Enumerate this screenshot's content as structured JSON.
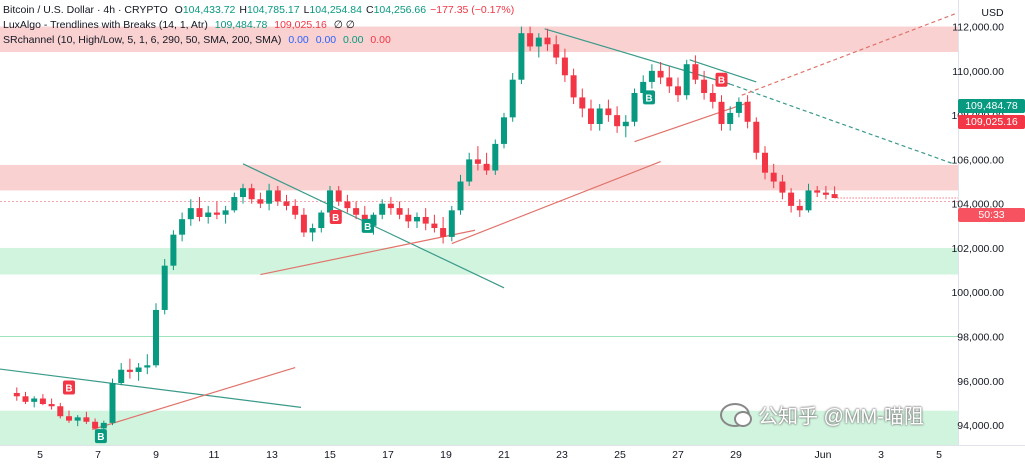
{
  "legend": {
    "symbol": "Bitcoin / U.S. Dollar · 4h · CRYPTO",
    "open_label": "O",
    "open": "104,433.72",
    "high_label": "H",
    "high": "104,785.17",
    "low_label": "L",
    "low": "104,254.84",
    "close_label": "C",
    "close": "104,256.66",
    "change": "−177.35 (−0.17%)",
    "indicator1_name": "LuxAlgo - Trendlines with Breaks (14, 1, Atr)",
    "indicator1_v1": "109,484.78",
    "indicator1_v2": "109,025.16",
    "indicator1_v3": "∅ ∅",
    "indicator2_name": "SRchannel (10, High/Low, 5, 1, 6, 290, 50, SMA, 200, SMA)",
    "indicator2_v1": "0.00",
    "indicator2_v2": "0.00",
    "indicator2_v3": "0.00",
    "indicator2_v4": "0.00"
  },
  "currency": "USD",
  "price_tags": [
    {
      "text": "109,484.78",
      "color": "#089981"
    },
    {
      "text": "109,025.16",
      "color": "#f23645"
    },
    {
      "text": "50:33",
      "color": "#f7525f"
    }
  ],
  "watermark": "公知乎 @MM-喵阻",
  "colors": {
    "up": "#089981",
    "down": "#f23645",
    "resistance_zone": "#f8c9c9",
    "support_zone": "#c9f2d8",
    "trend_down": "#3a9a8a",
    "trend_up": "#e0736b",
    "buy_label": "#089981",
    "sell_label": "#f23645"
  },
  "chart_data": {
    "type": "candlestick",
    "title": "Bitcoin / U.S. Dollar · 4h · CRYPTO",
    "x_ticks": [
      "5",
      "7",
      "9",
      "11",
      "13",
      "15",
      "17",
      "19",
      "21",
      "23",
      "25",
      "27",
      "29",
      "Jun",
      "3",
      "5"
    ],
    "y_ticks": [
      "112,000.00",
      "110,000.00",
      "108,000.00",
      "106,000.00",
      "104,000.00",
      "102,000.00",
      "100,000.00",
      "98,000.00",
      "96,000.00",
      "94,000.00"
    ],
    "ylim": [
      93100,
      113200
    ],
    "zones": [
      {
        "kind": "resistance",
        "from": 110850,
        "to": 112000
      },
      {
        "kind": "resistance",
        "from": 104600,
        "to": 105750
      },
      {
        "kind": "support",
        "from": 100800,
        "to": 102000
      },
      {
        "kind": "support",
        "from": 93100,
        "to": 94650
      }
    ],
    "candles": [
      {
        "d": 4.2,
        "o": 95450,
        "h": 95700,
        "l": 95100,
        "c": 95300
      },
      {
        "d": 4.5,
        "o": 95300,
        "h": 95500,
        "l": 94950,
        "c": 95050
      },
      {
        "d": 4.8,
        "o": 95050,
        "h": 95300,
        "l": 94800,
        "c": 95200
      },
      {
        "d": 5.1,
        "o": 95200,
        "h": 95400,
        "l": 94900,
        "c": 94950
      },
      {
        "d": 5.4,
        "o": 94950,
        "h": 95200,
        "l": 94700,
        "c": 94850
      },
      {
        "d": 5.7,
        "o": 94850,
        "h": 95000,
        "l": 94300,
        "c": 94400
      },
      {
        "d": 6.0,
        "o": 94400,
        "h": 94650,
        "l": 94100,
        "c": 94200
      },
      {
        "d": 6.3,
        "o": 94200,
        "h": 94450,
        "l": 93950,
        "c": 94350
      },
      {
        "d": 6.6,
        "o": 94350,
        "h": 94600,
        "l": 94050,
        "c": 94150
      },
      {
        "d": 6.9,
        "o": 94150,
        "h": 94300,
        "l": 93800,
        "c": 93850
      },
      {
        "d": 7.2,
        "o": 93850,
        "h": 94200,
        "l": 93700,
        "c": 94100
      },
      {
        "d": 7.5,
        "o": 94100,
        "h": 96100,
        "l": 94000,
        "c": 95900
      },
      {
        "d": 7.8,
        "o": 95900,
        "h": 96800,
        "l": 95800,
        "c": 96500
      },
      {
        "d": 8.1,
        "o": 96500,
        "h": 97000,
        "l": 96100,
        "c": 96400
      },
      {
        "d": 8.4,
        "o": 96400,
        "h": 96800,
        "l": 96000,
        "c": 96600
      },
      {
        "d": 8.7,
        "o": 96600,
        "h": 97200,
        "l": 96300,
        "c": 96700
      },
      {
        "d": 9.0,
        "o": 96700,
        "h": 99500,
        "l": 96600,
        "c": 99200
      },
      {
        "d": 9.3,
        "o": 99200,
        "h": 101500,
        "l": 99000,
        "c": 101200
      },
      {
        "d": 9.6,
        "o": 101200,
        "h": 102800,
        "l": 101000,
        "c": 102600
      },
      {
        "d": 9.9,
        "o": 102600,
        "h": 103600,
        "l": 102300,
        "c": 103300
      },
      {
        "d": 10.2,
        "o": 103300,
        "h": 104200,
        "l": 103000,
        "c": 103800
      },
      {
        "d": 10.5,
        "o": 103800,
        "h": 104300,
        "l": 103200,
        "c": 103400
      },
      {
        "d": 10.8,
        "o": 103400,
        "h": 103900,
        "l": 103100,
        "c": 103600
      },
      {
        "d": 11.1,
        "o": 103600,
        "h": 104100,
        "l": 103300,
        "c": 103500
      },
      {
        "d": 11.4,
        "o": 103500,
        "h": 103900,
        "l": 103100,
        "c": 103700
      },
      {
        "d": 11.7,
        "o": 103700,
        "h": 104500,
        "l": 103600,
        "c": 104300
      },
      {
        "d": 12.0,
        "o": 104300,
        "h": 104900,
        "l": 104000,
        "c": 104700
      },
      {
        "d": 12.3,
        "o": 104700,
        "h": 104900,
        "l": 104000,
        "c": 104200
      },
      {
        "d": 12.6,
        "o": 104200,
        "h": 104500,
        "l": 103800,
        "c": 104000
      },
      {
        "d": 12.9,
        "o": 104000,
        "h": 104900,
        "l": 103700,
        "c": 104600
      },
      {
        "d": 13.2,
        "o": 104600,
        "h": 104800,
        "l": 103900,
        "c": 104100
      },
      {
        "d": 13.5,
        "o": 104100,
        "h": 104400,
        "l": 103700,
        "c": 103900
      },
      {
        "d": 13.8,
        "o": 103900,
        "h": 104200,
        "l": 103300,
        "c": 103500
      },
      {
        "d": 14.1,
        "o": 103500,
        "h": 103800,
        "l": 102500,
        "c": 102700
      },
      {
        "d": 14.4,
        "o": 102700,
        "h": 103100,
        "l": 102300,
        "c": 102900
      },
      {
        "d": 14.7,
        "o": 102900,
        "h": 103700,
        "l": 102700,
        "c": 103600
      },
      {
        "d": 15.0,
        "o": 103600,
        "h": 104800,
        "l": 103400,
        "c": 104600
      },
      {
        "d": 15.3,
        "o": 104600,
        "h": 104800,
        "l": 103900,
        "c": 104100
      },
      {
        "d": 15.6,
        "o": 104100,
        "h": 104400,
        "l": 103600,
        "c": 103800
      },
      {
        "d": 15.9,
        "o": 103800,
        "h": 104100,
        "l": 103300,
        "c": 103500
      },
      {
        "d": 16.2,
        "o": 103500,
        "h": 103900,
        "l": 102700,
        "c": 103000
      },
      {
        "d": 16.5,
        "o": 103000,
        "h": 103600,
        "l": 102600,
        "c": 103500
      },
      {
        "d": 16.8,
        "o": 103500,
        "h": 104200,
        "l": 103300,
        "c": 104000
      },
      {
        "d": 17.1,
        "o": 104000,
        "h": 104300,
        "l": 103500,
        "c": 103800
      },
      {
        "d": 17.4,
        "o": 103800,
        "h": 104100,
        "l": 103300,
        "c": 103500
      },
      {
        "d": 17.7,
        "o": 103500,
        "h": 103800,
        "l": 102900,
        "c": 103200
      },
      {
        "d": 18.0,
        "o": 103200,
        "h": 103600,
        "l": 102900,
        "c": 103400
      },
      {
        "d": 18.3,
        "o": 103400,
        "h": 103800,
        "l": 102800,
        "c": 103100
      },
      {
        "d": 18.6,
        "o": 103100,
        "h": 103500,
        "l": 102700,
        "c": 102900
      },
      {
        "d": 18.9,
        "o": 102900,
        "h": 103400,
        "l": 102200,
        "c": 102500
      },
      {
        "d": 19.2,
        "o": 102500,
        "h": 103900,
        "l": 102300,
        "c": 103700
      },
      {
        "d": 19.5,
        "o": 103700,
        "h": 105300,
        "l": 103500,
        "c": 105000
      },
      {
        "d": 19.8,
        "o": 105000,
        "h": 106300,
        "l": 104800,
        "c": 106000
      },
      {
        "d": 20.1,
        "o": 106000,
        "h": 106600,
        "l": 105500,
        "c": 105800
      },
      {
        "d": 20.4,
        "o": 105800,
        "h": 106300,
        "l": 105300,
        "c": 105500
      },
      {
        "d": 20.7,
        "o": 105500,
        "h": 106900,
        "l": 105300,
        "c": 106700
      },
      {
        "d": 21.0,
        "o": 106700,
        "h": 108100,
        "l": 106500,
        "c": 107900
      },
      {
        "d": 21.3,
        "o": 107900,
        "h": 109900,
        "l": 107700,
        "c": 109600
      },
      {
        "d": 21.6,
        "o": 109600,
        "h": 112000,
        "l": 109400,
        "c": 111700
      },
      {
        "d": 21.9,
        "o": 111700,
        "h": 112000,
        "l": 110900,
        "c": 111100
      },
      {
        "d": 22.2,
        "o": 111100,
        "h": 111700,
        "l": 110600,
        "c": 111500
      },
      {
        "d": 22.5,
        "o": 111500,
        "h": 111900,
        "l": 110900,
        "c": 111200
      },
      {
        "d": 22.8,
        "o": 111200,
        "h": 111600,
        "l": 110300,
        "c": 110600
      },
      {
        "d": 23.1,
        "o": 110600,
        "h": 111000,
        "l": 109500,
        "c": 109800
      },
      {
        "d": 23.4,
        "o": 109800,
        "h": 110100,
        "l": 108500,
        "c": 108800
      },
      {
        "d": 23.7,
        "o": 108800,
        "h": 109200,
        "l": 107900,
        "c": 108300
      },
      {
        "d": 24.0,
        "o": 108300,
        "h": 108700,
        "l": 107300,
        "c": 107600
      },
      {
        "d": 24.3,
        "o": 107600,
        "h": 108500,
        "l": 107300,
        "c": 108300
      },
      {
        "d": 24.6,
        "o": 108300,
        "h": 108700,
        "l": 107700,
        "c": 108000
      },
      {
        "d": 24.9,
        "o": 108000,
        "h": 108400,
        "l": 107200,
        "c": 107500
      },
      {
        "d": 25.2,
        "o": 107500,
        "h": 108000,
        "l": 107000,
        "c": 107700
      },
      {
        "d": 25.5,
        "o": 107700,
        "h": 109200,
        "l": 107500,
        "c": 109000
      },
      {
        "d": 25.8,
        "o": 109000,
        "h": 109800,
        "l": 108700,
        "c": 109500
      },
      {
        "d": 26.1,
        "o": 109500,
        "h": 110300,
        "l": 109200,
        "c": 110000
      },
      {
        "d": 26.4,
        "o": 110000,
        "h": 110400,
        "l": 109400,
        "c": 109700
      },
      {
        "d": 26.7,
        "o": 109700,
        "h": 110200,
        "l": 109000,
        "c": 109300
      },
      {
        "d": 27.0,
        "o": 109300,
        "h": 109700,
        "l": 108600,
        "c": 108900
      },
      {
        "d": 27.3,
        "o": 108900,
        "h": 110500,
        "l": 108700,
        "c": 110300
      },
      {
        "d": 27.6,
        "o": 110300,
        "h": 110700,
        "l": 109400,
        "c": 109600
      },
      {
        "d": 27.9,
        "o": 109600,
        "h": 110000,
        "l": 108700,
        "c": 109000
      },
      {
        "d": 28.2,
        "o": 109000,
        "h": 109400,
        "l": 108300,
        "c": 108600
      },
      {
        "d": 28.5,
        "o": 108600,
        "h": 108900,
        "l": 107300,
        "c": 107600
      },
      {
        "d": 28.8,
        "o": 107600,
        "h": 108400,
        "l": 107300,
        "c": 108100
      },
      {
        "d": 29.1,
        "o": 108100,
        "h": 108800,
        "l": 107900,
        "c": 108600
      },
      {
        "d": 29.4,
        "o": 108600,
        "h": 108900,
        "l": 107400,
        "c": 107700
      },
      {
        "d": 29.7,
        "o": 107700,
        "h": 107900,
        "l": 106000,
        "c": 106300
      },
      {
        "d": 30.0,
        "o": 106300,
        "h": 106600,
        "l": 105100,
        "c": 105400
      },
      {
        "d": 30.3,
        "o": 105400,
        "h": 105800,
        "l": 104700,
        "c": 105000
      },
      {
        "d": 30.6,
        "o": 105000,
        "h": 105300,
        "l": 104200,
        "c": 104500
      },
      {
        "d": 30.9,
        "o": 104500,
        "h": 104700,
        "l": 103600,
        "c": 103900
      },
      {
        "d": 31.2,
        "o": 103900,
        "h": 104200,
        "l": 103400,
        "c": 103700
      },
      {
        "d": 31.5,
        "o": 103700,
        "h": 104900,
        "l": 103600,
        "c": 104600
      },
      {
        "d": 31.8,
        "o": 104600,
        "h": 104800,
        "l": 104300,
        "c": 104500
      },
      {
        "d": 32.1,
        "o": 104500,
        "h": 104800,
        "l": 104200,
        "c": 104400
      },
      {
        "d": 32.4,
        "o": 104433.72,
        "h": 104785.17,
        "l": 104254.84,
        "c": 104256.66
      }
    ],
    "trendlines": [
      {
        "kind": "down",
        "x1": 2.0,
        "y1": 96800,
        "x2": 14.0,
        "y2": 94800
      },
      {
        "kind": "up",
        "x1": 6.8,
        "y1": 93800,
        "x2": 13.8,
        "y2": 96600
      },
      {
        "kind": "down",
        "x1": 12.0,
        "y1": 105800,
        "x2": 21.0,
        "y2": 100200
      },
      {
        "kind": "up",
        "x1": 12.6,
        "y1": 100800,
        "x2": 20.0,
        "y2": 102800
      },
      {
        "kind": "up",
        "x1": 19.2,
        "y1": 102200,
        "x2": 26.4,
        "y2": 105900
      },
      {
        "kind": "down",
        "x1": 22.4,
        "y1": 111900,
        "x2": 28.8,
        "y2": 109400
      },
      {
        "kind": "up",
        "x1": 25.5,
        "y1": 106800,
        "x2": 29.5,
        "y2": 108600
      },
      {
        "kind": "down",
        "x1": 27.4,
        "y1": 110500,
        "x2": 29.7,
        "y2": 109500
      },
      {
        "kind": "down-dashed",
        "x1": 28.8,
        "y1": 109400,
        "x2": 36.5,
        "y2": 105800
      },
      {
        "kind": "up-dashed",
        "x1": 29.2,
        "y1": 108900,
        "x2": 36.6,
        "y2": 112600
      }
    ],
    "signals": [
      {
        "type": "sell",
        "text": "B",
        "x": 6.0,
        "y": 95700
      },
      {
        "type": "buy",
        "text": "B",
        "x": 7.1,
        "y": 93500
      },
      {
        "type": "sell",
        "text": "B",
        "x": 15.2,
        "y": 103400
      },
      {
        "type": "buy",
        "text": "B",
        "x": 16.3,
        "y": 103000
      },
      {
        "type": "buy",
        "text": "B",
        "x": 26.0,
        "y": 108800
      },
      {
        "type": "sell",
        "text": "B",
        "x": 28.5,
        "y": 109600
      }
    ]
  }
}
